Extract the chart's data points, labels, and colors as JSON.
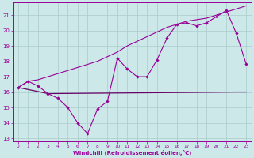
{
  "xlabel": "Windchill (Refroidissement éolien,°C)",
  "bg_color": "#cce8e8",
  "grid_color": "#aacccc",
  "line_color": "#990099",
  "line_color2": "#660066",
  "xlim": [
    -0.5,
    23.5
  ],
  "ylim": [
    12.8,
    21.8
  ],
  "yticks": [
    13,
    14,
    15,
    16,
    17,
    18,
    19,
    20,
    21
  ],
  "xticks": [
    0,
    1,
    2,
    3,
    4,
    5,
    6,
    7,
    8,
    9,
    10,
    11,
    12,
    13,
    14,
    15,
    16,
    17,
    18,
    19,
    20,
    21,
    22,
    23
  ],
  "series1_x": [
    0,
    1,
    2,
    3,
    4,
    5,
    6,
    7,
    8,
    9,
    10,
    11,
    12,
    13,
    14,
    15,
    16,
    17,
    18,
    19,
    20,
    21,
    22,
    23
  ],
  "series1_y": [
    16.3,
    16.7,
    16.8,
    17.0,
    17.2,
    17.4,
    17.6,
    17.8,
    18.0,
    18.3,
    18.6,
    19.0,
    19.3,
    19.6,
    19.9,
    20.2,
    20.4,
    20.6,
    20.7,
    20.8,
    21.0,
    21.2,
    21.4,
    21.6
  ],
  "series2_x": [
    0,
    1,
    2,
    3,
    4,
    5,
    6,
    7,
    8,
    9,
    10,
    11,
    12,
    13,
    14,
    15,
    16,
    17,
    18,
    19,
    20,
    21,
    22,
    23
  ],
  "series2_y": [
    16.3,
    16.7,
    16.4,
    15.9,
    15.6,
    15.0,
    14.0,
    13.3,
    14.9,
    15.4,
    18.2,
    17.5,
    17.0,
    17.0,
    18.1,
    19.5,
    20.4,
    20.5,
    20.3,
    20.5,
    20.9,
    21.3,
    19.8,
    17.8
  ],
  "series3_x": [
    0,
    3,
    22,
    23
  ],
  "series3_y": [
    16.3,
    15.9,
    16.0,
    16.0
  ]
}
